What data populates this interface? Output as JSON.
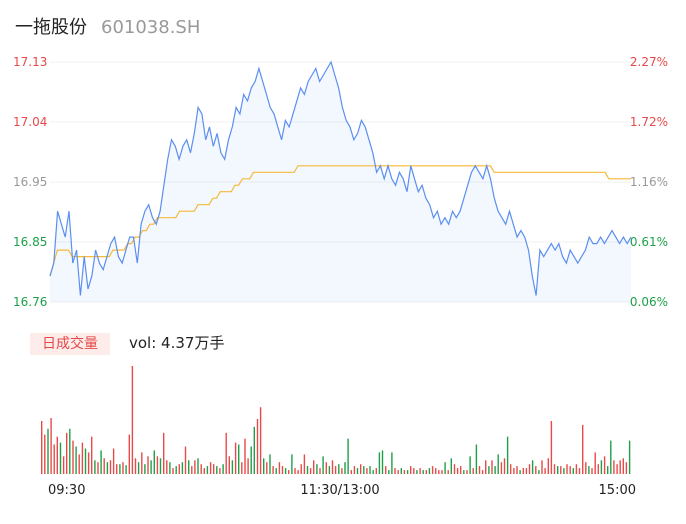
{
  "header": {
    "name": "一拖股份",
    "code": "601038.SH"
  },
  "volume_panel": {
    "tab_label": "日成交量",
    "vol_text": "vol: 4.37万手"
  },
  "colors": {
    "price_line": "#5b8ff0",
    "avg_line": "#f5b93a",
    "up": "#e84a4a",
    "down": "#1ea04a",
    "neutral": "#999999"
  },
  "chart_data": [
    {
      "type": "line",
      "x_ticks": [
        "09:30",
        "11:30/13:00",
        "15:00"
      ],
      "y_ticks_left": [
        "17.13",
        "17.04",
        "16.95",
        "16.85",
        "16.76"
      ],
      "y_ticks_right": [
        "2.27%",
        "1.72%",
        "1.16%",
        "0.61%",
        "0.06%"
      ],
      "ylim": [
        16.76,
        17.13
      ],
      "series": [
        {
          "values": [
            16.8,
            16.82,
            16.9,
            16.88,
            16.86,
            16.9,
            16.82,
            16.84,
            16.77,
            16.83,
            16.78,
            16.8,
            16.84,
            16.82,
            16.81,
            16.83,
            16.85,
            16.86,
            16.83,
            16.82,
            16.84,
            16.86,
            16.86,
            16.82,
            16.88,
            16.9,
            16.91,
            16.89,
            16.88,
            16.9,
            16.94,
            16.98,
            17.01,
            17.0,
            16.98,
            17.0,
            17.01,
            16.99,
            17.02,
            17.06,
            17.05,
            17.01,
            17.03,
            17.0,
            17.02,
            16.99,
            16.98,
            17.01,
            17.03,
            17.06,
            17.05,
            17.08,
            17.07,
            17.09,
            17.1,
            17.12,
            17.1,
            17.08,
            17.06,
            17.05,
            17.03,
            17.01,
            17.04,
            17.03,
            17.05,
            17.07,
            17.09,
            17.08,
            17.1,
            17.11,
            17.12,
            17.1,
            17.11,
            17.12,
            17.13,
            17.11,
            17.09,
            17.06,
            17.04,
            17.03,
            17.01,
            17.02,
            17.04,
            17.03,
            17.01,
            16.99,
            16.96,
            16.97,
            16.95,
            16.97,
            16.95,
            16.94,
            16.96,
            16.95,
            16.93,
            16.97,
            16.95,
            16.93,
            16.94,
            16.92,
            16.91,
            16.89,
            16.9,
            16.88,
            16.89,
            16.88,
            16.9,
            16.89,
            16.9,
            16.92,
            16.94,
            16.96,
            16.97,
            16.96,
            16.95,
            16.97,
            16.95,
            16.92,
            16.9,
            16.89,
            16.88,
            16.9,
            16.88,
            16.86,
            16.87,
            16.86,
            16.84,
            16.8,
            16.77,
            16.84,
            16.83,
            16.84,
            16.85,
            16.84,
            16.85,
            16.83,
            16.82,
            16.84,
            16.83,
            16.82,
            16.83,
            16.84,
            16.86,
            16.85,
            16.85,
            16.86,
            16.85,
            16.86,
            16.87,
            16.86,
            16.85,
            16.86,
            16.85,
            16.86
          ]
        },
        {
          "values": [
            16.8,
            16.82,
            16.84,
            16.84,
            16.84,
            16.84,
            16.83,
            16.83,
            16.83,
            16.83,
            16.83,
            16.83,
            16.83,
            16.83,
            16.83,
            16.83,
            16.83,
            16.84,
            16.84,
            16.84,
            16.84,
            16.85,
            16.85,
            16.86,
            16.86,
            16.87,
            16.87,
            16.88,
            16.88,
            16.89,
            16.89,
            16.89,
            16.89,
            16.89,
            16.89,
            16.9,
            16.9,
            16.9,
            16.9,
            16.9,
            16.91,
            16.91,
            16.91,
            16.91,
            16.92,
            16.92,
            16.93,
            16.93,
            16.93,
            16.93,
            16.94,
            16.94,
            16.95,
            16.95,
            16.95,
            16.96,
            16.96,
            16.96,
            16.96,
            16.96,
            16.96,
            16.96,
            16.96,
            16.96,
            16.96,
            16.96,
            16.96,
            16.97,
            16.97,
            16.97,
            16.97,
            16.97,
            16.97,
            16.97,
            16.97,
            16.97,
            16.97,
            16.97,
            16.97,
            16.97,
            16.97,
            16.97,
            16.97,
            16.97,
            16.97,
            16.97,
            16.97,
            16.97,
            16.97,
            16.97,
            16.97,
            16.97,
            16.97,
            16.97,
            16.97,
            16.97,
            16.97,
            16.97,
            16.97,
            16.97,
            16.97,
            16.97,
            16.97,
            16.97,
            16.97,
            16.97,
            16.97,
            16.97,
            16.97,
            16.97,
            16.97,
            16.97,
            16.97,
            16.97,
            16.97,
            16.97,
            16.97,
            16.97,
            16.97,
            16.97,
            16.96,
            16.96,
            16.96,
            16.96,
            16.96,
            16.96,
            16.96,
            16.96,
            16.96,
            16.96,
            16.96,
            16.96,
            16.96,
            16.96,
            16.96,
            16.96,
            16.96,
            16.96,
            16.96,
            16.96,
            16.96,
            16.96,
            16.96,
            16.96,
            16.96,
            16.96,
            16.96,
            16.96,
            16.96,
            16.96,
            16.96,
            16.95,
            16.95,
            16.95,
            16.95,
            16.95,
            16.95,
            16.95
          ]
        }
      ]
    },
    {
      "type": "bar",
      "bars": [
        {
          "v": 54,
          "c": "up"
        },
        {
          "v": 40,
          "c": "up"
        },
        {
          "v": 46,
          "c": "down"
        },
        {
          "v": 57,
          "c": "up"
        },
        {
          "v": 30,
          "c": "up"
        },
        {
          "v": 38,
          "c": "up"
        },
        {
          "v": 32,
          "c": "down"
        },
        {
          "v": 18,
          "c": "up"
        },
        {
          "v": 42,
          "c": "up"
        },
        {
          "v": 46,
          "c": "down"
        },
        {
          "v": 34,
          "c": "up"
        },
        {
          "v": 28,
          "c": "down"
        },
        {
          "v": 20,
          "c": "up"
        },
        {
          "v": 32,
          "c": "up"
        },
        {
          "v": 26,
          "c": "down"
        },
        {
          "v": 22,
          "c": "up"
        },
        {
          "v": 38,
          "c": "up"
        },
        {
          "v": 14,
          "c": "down"
        },
        {
          "v": 12,
          "c": "up"
        },
        {
          "v": 24,
          "c": "down"
        },
        {
          "v": 16,
          "c": "up"
        },
        {
          "v": 12,
          "c": "down"
        },
        {
          "v": 14,
          "c": "up"
        },
        {
          "v": 26,
          "c": "up"
        },
        {
          "v": 10,
          "c": "up"
        },
        {
          "v": 10,
          "c": "down"
        },
        {
          "v": 12,
          "c": "up"
        },
        {
          "v": 9,
          "c": "down"
        },
        {
          "v": 40,
          "c": "up"
        },
        {
          "v": 110,
          "c": "up"
        },
        {
          "v": 16,
          "c": "up"
        },
        {
          "v": 12,
          "c": "down"
        },
        {
          "v": 22,
          "c": "up"
        },
        {
          "v": 10,
          "c": "down"
        },
        {
          "v": 18,
          "c": "up"
        },
        {
          "v": 14,
          "c": "down"
        },
        {
          "v": 24,
          "c": "down"
        },
        {
          "v": 18,
          "c": "up"
        },
        {
          "v": 16,
          "c": "down"
        },
        {
          "v": 42,
          "c": "up"
        },
        {
          "v": 14,
          "c": "up"
        },
        {
          "v": 12,
          "c": "down"
        },
        {
          "v": 6,
          "c": "up"
        },
        {
          "v": 8,
          "c": "down"
        },
        {
          "v": 10,
          "c": "up"
        },
        {
          "v": 12,
          "c": "down"
        },
        {
          "v": 28,
          "c": "up"
        },
        {
          "v": 14,
          "c": "down"
        },
        {
          "v": 8,
          "c": "up"
        },
        {
          "v": 14,
          "c": "up"
        },
        {
          "v": 16,
          "c": "down"
        },
        {
          "v": 10,
          "c": "up"
        },
        {
          "v": 6,
          "c": "up"
        },
        {
          "v": 8,
          "c": "down"
        },
        {
          "v": 12,
          "c": "up"
        },
        {
          "v": 10,
          "c": "up"
        },
        {
          "v": 8,
          "c": "down"
        },
        {
          "v": 6,
          "c": "up"
        },
        {
          "v": 10,
          "c": "down"
        },
        {
          "v": 42,
          "c": "up"
        },
        {
          "v": 18,
          "c": "up"
        },
        {
          "v": 14,
          "c": "down"
        },
        {
          "v": 32,
          "c": "up"
        },
        {
          "v": 30,
          "c": "down"
        },
        {
          "v": 12,
          "c": "up"
        },
        {
          "v": 36,
          "c": "up"
        },
        {
          "v": 16,
          "c": "up"
        },
        {
          "v": 28,
          "c": "down"
        },
        {
          "v": 48,
          "c": "down"
        },
        {
          "v": 56,
          "c": "up"
        },
        {
          "v": 68,
          "c": "up"
        },
        {
          "v": 16,
          "c": "down"
        },
        {
          "v": 12,
          "c": "up"
        },
        {
          "v": 20,
          "c": "down"
        },
        {
          "v": 8,
          "c": "up"
        },
        {
          "v": 6,
          "c": "down"
        },
        {
          "v": 12,
          "c": "up"
        },
        {
          "v": 8,
          "c": "up"
        },
        {
          "v": 6,
          "c": "down"
        },
        {
          "v": 4,
          "c": "up"
        },
        {
          "v": 20,
          "c": "down"
        },
        {
          "v": 6,
          "c": "up"
        },
        {
          "v": 4,
          "c": "up"
        },
        {
          "v": 10,
          "c": "up"
        },
        {
          "v": 20,
          "c": "up"
        },
        {
          "v": 8,
          "c": "down"
        },
        {
          "v": 6,
          "c": "up"
        },
        {
          "v": 14,
          "c": "up"
        },
        {
          "v": 10,
          "c": "down"
        },
        {
          "v": 6,
          "c": "up"
        },
        {
          "v": 18,
          "c": "down"
        },
        {
          "v": 12,
          "c": "up"
        },
        {
          "v": 8,
          "c": "down"
        },
        {
          "v": 14,
          "c": "up"
        },
        {
          "v": 8,
          "c": "up"
        },
        {
          "v": 10,
          "c": "down"
        },
        {
          "v": 6,
          "c": "up"
        },
        {
          "v": 12,
          "c": "down"
        },
        {
          "v": 36,
          "c": "down"
        },
        {
          "v": 4,
          "c": "up"
        },
        {
          "v": 8,
          "c": "up"
        },
        {
          "v": 6,
          "c": "down"
        },
        {
          "v": 10,
          "c": "up"
        },
        {
          "v": 8,
          "c": "down"
        },
        {
          "v": 6,
          "c": "up"
        },
        {
          "v": 8,
          "c": "down"
        },
        {
          "v": 4,
          "c": "down"
        },
        {
          "v": 6,
          "c": "up"
        },
        {
          "v": 22,
          "c": "down"
        },
        {
          "v": 24,
          "c": "down"
        },
        {
          "v": 8,
          "c": "up"
        },
        {
          "v": 4,
          "c": "down"
        },
        {
          "v": 22,
          "c": "down"
        },
        {
          "v": 6,
          "c": "up"
        },
        {
          "v": 4,
          "c": "up"
        },
        {
          "v": 6,
          "c": "down"
        },
        {
          "v": 4,
          "c": "up"
        },
        {
          "v": 4,
          "c": "down"
        },
        {
          "v": 8,
          "c": "up"
        },
        {
          "v": 6,
          "c": "up"
        },
        {
          "v": 4,
          "c": "down"
        },
        {
          "v": 6,
          "c": "up"
        },
        {
          "v": 4,
          "c": "down"
        },
        {
          "v": 4,
          "c": "up"
        },
        {
          "v": 6,
          "c": "down"
        },
        {
          "v": 8,
          "c": "up"
        },
        {
          "v": 6,
          "c": "up"
        },
        {
          "v": 4,
          "c": "up"
        },
        {
          "v": 4,
          "c": "up"
        },
        {
          "v": 12,
          "c": "down"
        },
        {
          "v": 4,
          "c": "up"
        },
        {
          "v": 16,
          "c": "down"
        },
        {
          "v": 10,
          "c": "up"
        },
        {
          "v": 6,
          "c": "up"
        },
        {
          "v": 8,
          "c": "up"
        },
        {
          "v": 4,
          "c": "down"
        },
        {
          "v": 4,
          "c": "up"
        },
        {
          "v": 18,
          "c": "down"
        },
        {
          "v": 6,
          "c": "up"
        },
        {
          "v": 30,
          "c": "down"
        },
        {
          "v": 8,
          "c": "up"
        },
        {
          "v": 4,
          "c": "up"
        },
        {
          "v": 14,
          "c": "up"
        },
        {
          "v": 8,
          "c": "down"
        },
        {
          "v": 14,
          "c": "up"
        },
        {
          "v": 8,
          "c": "down"
        },
        {
          "v": 20,
          "c": "down"
        },
        {
          "v": 12,
          "c": "up"
        },
        {
          "v": 16,
          "c": "up"
        },
        {
          "v": 38,
          "c": "down"
        },
        {
          "v": 10,
          "c": "up"
        },
        {
          "v": 6,
          "c": "up"
        },
        {
          "v": 8,
          "c": "up"
        },
        {
          "v": 4,
          "c": "down"
        },
        {
          "v": 6,
          "c": "up"
        },
        {
          "v": 6,
          "c": "up"
        },
        {
          "v": 10,
          "c": "up"
        },
        {
          "v": 14,
          "c": "down"
        },
        {
          "v": 8,
          "c": "up"
        },
        {
          "v": 4,
          "c": "down"
        },
        {
          "v": 14,
          "c": "up"
        },
        {
          "v": 6,
          "c": "up"
        },
        {
          "v": 16,
          "c": "up"
        },
        {
          "v": 54,
          "c": "up"
        },
        {
          "v": 10,
          "c": "up"
        },
        {
          "v": 8,
          "c": "down"
        },
        {
          "v": 8,
          "c": "up"
        },
        {
          "v": 6,
          "c": "down"
        },
        {
          "v": 10,
          "c": "up"
        },
        {
          "v": 8,
          "c": "up"
        },
        {
          "v": 6,
          "c": "down"
        },
        {
          "v": 10,
          "c": "up"
        },
        {
          "v": 6,
          "c": "up"
        },
        {
          "v": 50,
          "c": "up"
        },
        {
          "v": 12,
          "c": "up"
        },
        {
          "v": 8,
          "c": "down"
        },
        {
          "v": 6,
          "c": "up"
        },
        {
          "v": 22,
          "c": "up"
        },
        {
          "v": 10,
          "c": "up"
        },
        {
          "v": 14,
          "c": "down"
        },
        {
          "v": 18,
          "c": "up"
        },
        {
          "v": 8,
          "c": "down"
        },
        {
          "v": 34,
          "c": "down"
        },
        {
          "v": 14,
          "c": "up"
        },
        {
          "v": 10,
          "c": "up"
        },
        {
          "v": 14,
          "c": "up"
        },
        {
          "v": 16,
          "c": "up"
        },
        {
          "v": 12,
          "c": "up"
        },
        {
          "v": 34,
          "c": "down"
        }
      ]
    }
  ]
}
